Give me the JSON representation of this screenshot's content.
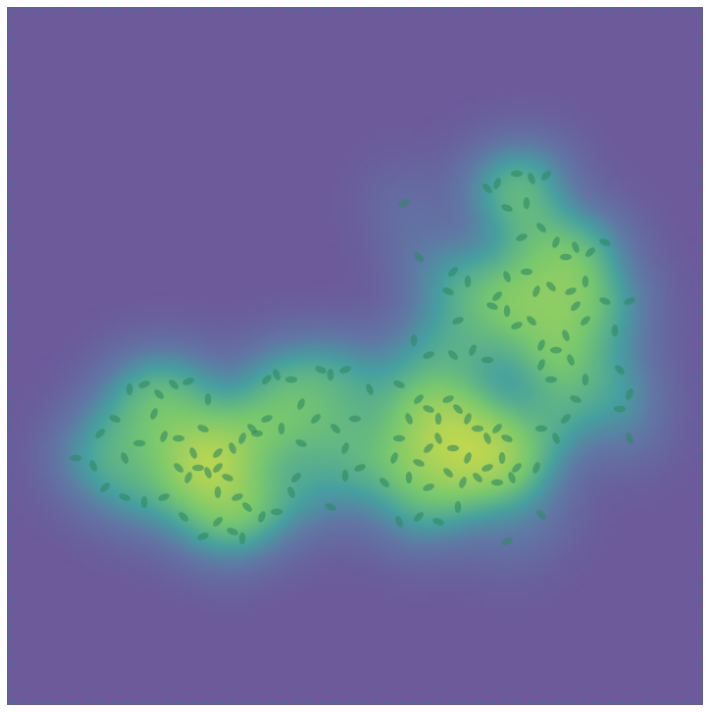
{
  "chart_data": {
    "type": "scatter",
    "marker": "ellipse",
    "color": "#2e8a63",
    "grid": false,
    "tick_labels": false,
    "xlim": [
      0,
      710
    ],
    "ylim": [
      0,
      712
    ],
    "x": [
      70,
      88,
      95,
      110,
      125,
      140,
      155,
      150,
      135,
      120,
      100,
      120,
      140,
      160,
      175,
      185,
      195,
      205,
      215,
      225,
      215,
      235,
      245,
      260,
      275,
      290,
      295,
      300,
      280,
      265,
      250,
      240,
      255,
      230,
      215,
      200,
      205,
      185,
      170,
      160,
      175,
      190,
      215,
      230,
      240,
      200,
      180,
      300,
      290,
      275,
      265,
      320,
      330,
      345,
      335,
      345,
      355,
      370,
      315,
      330,
      345,
      360,
      385,
      395,
      400,
      410,
      420,
      430,
      440,
      450,
      460,
      470,
      480,
      490,
      500,
      510,
      505,
      490,
      480,
      470,
      455,
      440,
      430,
      420,
      410,
      430,
      450,
      465,
      500,
      515,
      520,
      400,
      415,
      430,
      455,
      475,
      490,
      400,
      420,
      440,
      460,
      510,
      545,
      540,
      545,
      560,
      570,
      580,
      590,
      405,
      490,
      500,
      520,
      535,
      550,
      510,
      530,
      525,
      545,
      560,
      570,
      580,
      595,
      610,
      590,
      575,
      555,
      540,
      530,
      510,
      500,
      495,
      510,
      520,
      535,
      545,
      560,
      570,
      590,
      610,
      620,
      635,
      625,
      635,
      625,
      635,
      455,
      450,
      470,
      460,
      420,
      545,
      555,
      575,
      580
    ],
    "y": [
      460,
      468,
      435,
      420,
      390,
      385,
      395,
      415,
      445,
      460,
      490,
      500,
      505,
      500,
      470,
      480,
      470,
      475,
      470,
      480,
      495,
      500,
      510,
      520,
      515,
      495,
      480,
      445,
      430,
      420,
      430,
      440,
      435,
      450,
      455,
      430,
      400,
      382,
      385,
      438,
      440,
      455,
      525,
      535,
      542,
      540,
      520,
      405,
      380,
      375,
      380,
      370,
      375,
      370,
      430,
      450,
      420,
      390,
      420,
      510,
      478,
      470,
      485,
      460,
      440,
      420,
      400,
      410,
      420,
      400,
      410,
      420,
      430,
      440,
      430,
      440,
      460,
      470,
      480,
      460,
      450,
      440,
      450,
      465,
      480,
      490,
      475,
      485,
      485,
      480,
      470,
      385,
      340,
      355,
      355,
      350,
      360,
      525,
      520,
      525,
      510,
      545,
      518,
      470,
      430,
      440,
      420,
      400,
      380,
      200,
      185,
      180,
      170,
      175,
      172,
      205,
      200,
      235,
      225,
      240,
      255,
      245,
      250,
      240,
      280,
      290,
      285,
      290,
      270,
      275,
      295,
      305,
      310,
      325,
      320,
      345,
      350,
      335,
      320,
      300,
      330,
      300,
      370,
      395,
      410,
      440,
      270,
      290,
      280,
      320,
      255,
      365,
      380,
      360,
      305
    ]
  }
}
